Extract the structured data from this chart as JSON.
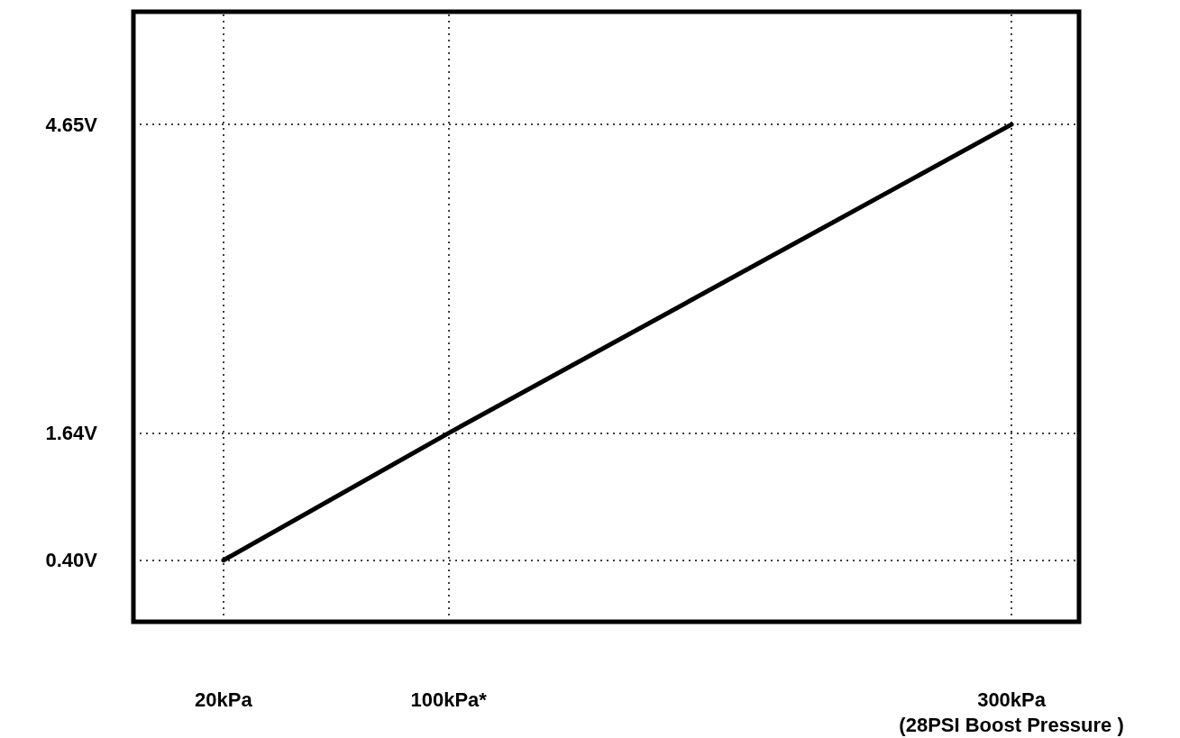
{
  "chart_data": {
    "type": "line",
    "x": [
      20,
      100,
      300
    ],
    "series": [
      {
        "color": "#000000",
        "values": [
          0.4,
          1.64,
          4.65
        ]
      }
    ],
    "xlim": [
      -12,
      324
    ],
    "xticks": [
      {
        "value": 20,
        "label": "20kPa"
      },
      {
        "value": 100,
        "label": "100kPa*"
      },
      {
        "value": 300,
        "label": "300kPa\n(28PSI Boost Pressure )"
      }
    ],
    "ylim": [
      -0.2,
      5.75
    ],
    "yticks": [
      {
        "value": 0.4,
        "label": "0.40V"
      },
      {
        "value": 1.64,
        "label": "1.64V"
      },
      {
        "value": 4.65,
        "label": "4.65V"
      }
    ],
    "grid": true,
    "marker": "none",
    "line_style": "solid"
  }
}
